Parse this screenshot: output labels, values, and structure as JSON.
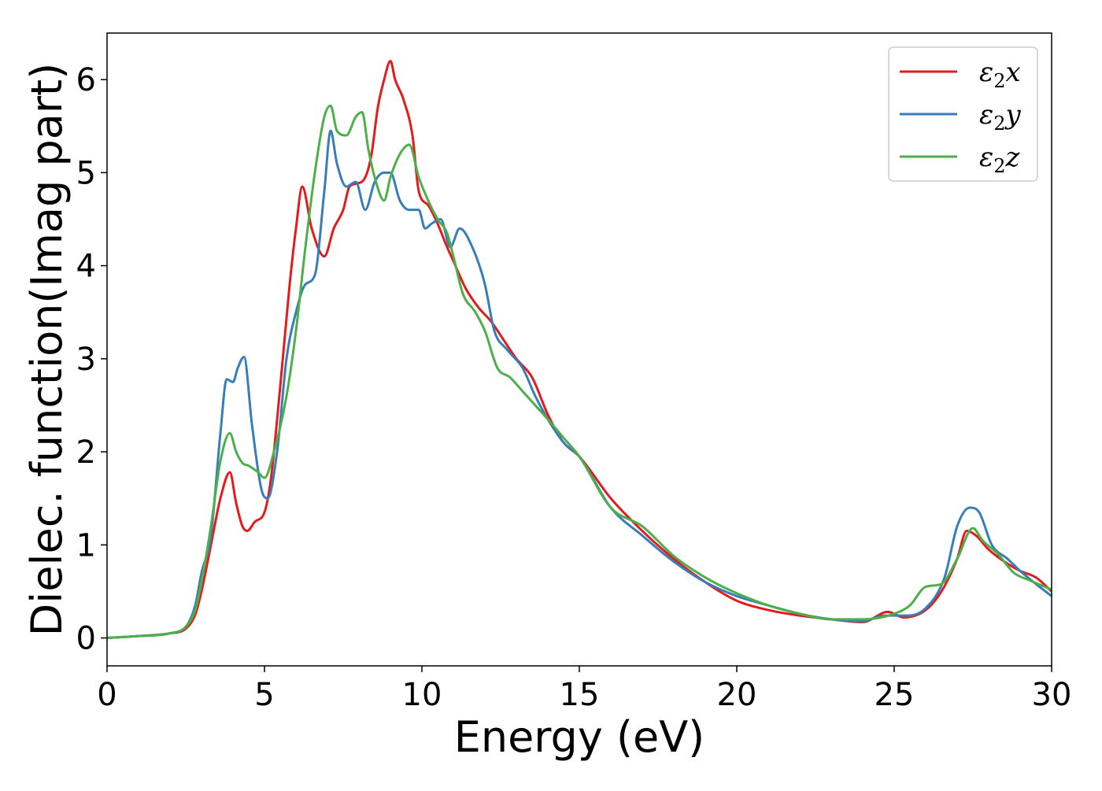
{
  "chart_data": {
    "type": "line",
    "title": "",
    "xlabel": "Energy (eV)",
    "ylabel": "Dielec. function(Imag part)",
    "xlim": [
      0,
      30
    ],
    "ylim": [
      -0.3,
      6.5
    ],
    "xticks": [
      0,
      5,
      10,
      15,
      20,
      25,
      30
    ],
    "yticks": [
      0,
      1,
      2,
      3,
      4,
      5,
      6
    ],
    "grid": false,
    "legend_position": "top-right",
    "series": [
      {
        "name": "ε2x",
        "legend_symbol": "ε",
        "legend_subscript": "2",
        "legend_suffix": "x",
        "color": "#e41a1c",
        "x": [
          0,
          1,
          2,
          2.5,
          2.8,
          3.0,
          3.3,
          3.6,
          3.9,
          4.1,
          4.3,
          4.45,
          4.7,
          5.0,
          5.2,
          5.5,
          5.8,
          6.0,
          6.2,
          6.5,
          6.9,
          7.2,
          7.5,
          7.7,
          7.9,
          8.2,
          8.4,
          8.6,
          8.8,
          9.0,
          9.15,
          9.4,
          9.7,
          9.9,
          10.2,
          10.5,
          10.8,
          11.0,
          11.4,
          11.8,
          12.2,
          12.6,
          13.0,
          13.5,
          14.0,
          14.5,
          15,
          16,
          17,
          18,
          19,
          20,
          21,
          22,
          23,
          24,
          24.8,
          25.3,
          26,
          26.5,
          27.0,
          27.3,
          27.6,
          28.0,
          28.5,
          29.0,
          29.5,
          30
        ],
        "y": [
          0,
          0.02,
          0.05,
          0.1,
          0.25,
          0.5,
          1.0,
          1.5,
          1.78,
          1.45,
          1.2,
          1.15,
          1.25,
          1.35,
          1.7,
          2.7,
          3.8,
          4.4,
          4.85,
          4.4,
          4.1,
          4.4,
          4.6,
          4.85,
          4.88,
          4.95,
          5.2,
          5.7,
          6.0,
          6.2,
          6.0,
          5.8,
          5.4,
          4.8,
          4.65,
          4.45,
          4.2,
          4.05,
          3.75,
          3.55,
          3.4,
          3.2,
          3.0,
          2.8,
          2.4,
          2.1,
          1.95,
          1.5,
          1.15,
          0.85,
          0.6,
          0.4,
          0.3,
          0.24,
          0.2,
          0.17,
          0.28,
          0.22,
          0.3,
          0.5,
          0.85,
          1.15,
          1.1,
          0.95,
          0.82,
          0.72,
          0.65,
          0.5
        ]
      },
      {
        "name": "ε2y",
        "legend_symbol": "ε",
        "legend_subscript": "2",
        "legend_suffix": "y",
        "color": "#377eb8",
        "x": [
          0,
          1,
          2,
          2.5,
          2.8,
          3.0,
          3.3,
          3.6,
          3.8,
          4.0,
          4.15,
          4.35,
          4.6,
          4.9,
          5.1,
          5.4,
          5.7,
          6.0,
          6.3,
          6.6,
          6.9,
          7.1,
          7.3,
          7.6,
          7.9,
          8.2,
          8.5,
          8.8,
          9.0,
          9.3,
          9.6,
          9.9,
          10.1,
          10.3,
          10.6,
          10.9,
          11.2,
          11.6,
          12.0,
          12.3,
          12.7,
          13.2,
          13.6,
          14.0,
          14.5,
          15,
          16,
          17,
          18,
          19,
          20,
          21,
          22,
          23,
          24,
          24.7,
          25.4,
          26,
          26.6,
          27.0,
          27.4,
          27.7,
          28.1,
          28.6,
          29.0,
          29.5,
          30
        ],
        "y": [
          0,
          0.02,
          0.05,
          0.12,
          0.35,
          0.7,
          1.1,
          2.2,
          2.78,
          2.75,
          2.9,
          3.02,
          2.3,
          1.6,
          1.5,
          2.0,
          3.0,
          3.5,
          3.8,
          3.9,
          4.8,
          5.45,
          5.1,
          4.85,
          4.9,
          4.6,
          4.9,
          5.0,
          5.0,
          4.7,
          4.6,
          4.6,
          4.4,
          4.45,
          4.5,
          4.2,
          4.4,
          4.2,
          3.8,
          3.3,
          3.1,
          2.9,
          2.6,
          2.35,
          2.1,
          1.95,
          1.4,
          1.1,
          0.82,
          0.6,
          0.45,
          0.35,
          0.26,
          0.2,
          0.18,
          0.24,
          0.24,
          0.32,
          0.65,
          1.2,
          1.4,
          1.35,
          1.0,
          0.85,
          0.72,
          0.58,
          0.45
        ]
      },
      {
        "name": "ε2z",
        "legend_symbol": "ε",
        "legend_subscript": "2",
        "legend_suffix": "z",
        "color": "#4daf4a",
        "x": [
          0,
          1,
          2,
          2.5,
          2.8,
          3.0,
          3.3,
          3.6,
          3.9,
          4.1,
          4.3,
          4.5,
          4.8,
          5.0,
          5.3,
          5.7,
          6.0,
          6.3,
          6.6,
          6.9,
          7.1,
          7.3,
          7.6,
          7.9,
          8.1,
          8.3,
          8.5,
          8.8,
          9.0,
          9.3,
          9.6,
          9.9,
          10.2,
          10.5,
          10.8,
          11.0,
          11.3,
          11.7,
          12.0,
          12.4,
          12.8,
          13.2,
          13.6,
          14.0,
          14.5,
          15,
          16,
          17,
          18,
          19,
          20,
          21,
          22,
          23,
          24,
          25,
          25.5,
          26,
          26.5,
          27.0,
          27.5,
          27.8,
          28.3,
          28.8,
          29.3,
          30
        ],
        "y": [
          0,
          0.02,
          0.05,
          0.12,
          0.3,
          0.6,
          1.2,
          1.9,
          2.2,
          2.0,
          1.88,
          1.85,
          1.78,
          1.72,
          2.0,
          2.6,
          3.3,
          4.2,
          5.0,
          5.6,
          5.72,
          5.45,
          5.4,
          5.6,
          5.65,
          5.25,
          4.95,
          4.7,
          4.95,
          5.2,
          5.3,
          4.95,
          4.7,
          4.5,
          4.35,
          4.1,
          3.7,
          3.5,
          3.3,
          2.9,
          2.8,
          2.65,
          2.5,
          2.35,
          2.15,
          1.95,
          1.4,
          1.2,
          0.88,
          0.65,
          0.48,
          0.35,
          0.26,
          0.2,
          0.2,
          0.26,
          0.35,
          0.55,
          0.58,
          0.85,
          1.18,
          1.05,
          0.9,
          0.7,
          0.62,
          0.52
        ]
      }
    ]
  }
}
